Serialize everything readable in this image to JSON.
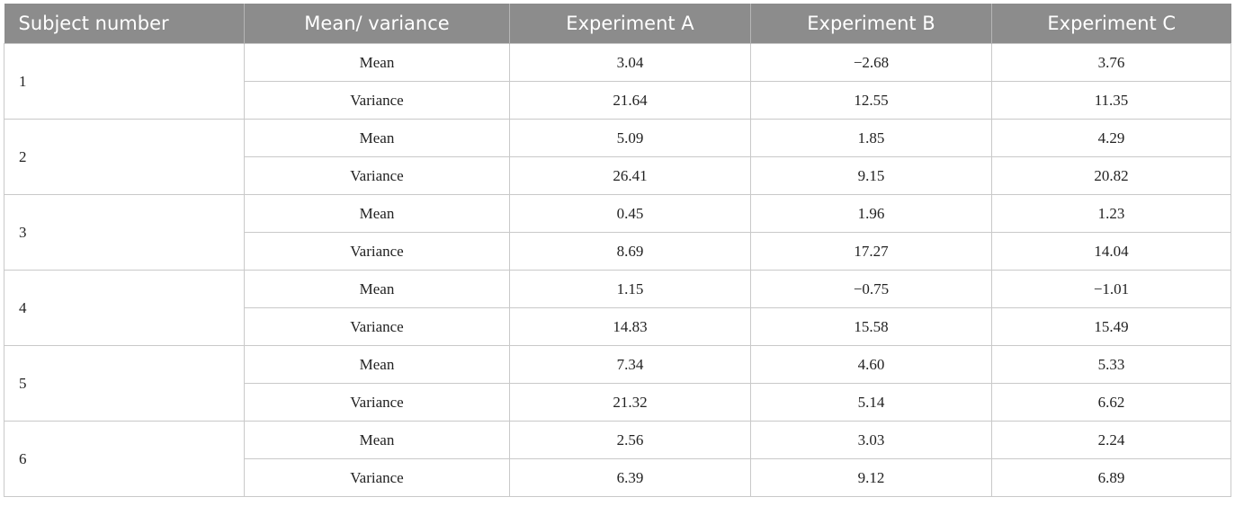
{
  "table": {
    "headers": [
      "Subject number",
      "Mean/ variance",
      "Experiment A",
      "Experiment B",
      "Experiment C"
    ],
    "subjects": [
      {
        "number": "1",
        "mean": {
          "label": "Mean",
          "values": [
            "3.04",
            "−2.68",
            "3.76"
          ]
        },
        "variance": {
          "label": "Variance",
          "values": [
            "21.64",
            "12.55",
            "11.35"
          ]
        }
      },
      {
        "number": "2",
        "mean": {
          "label": "Mean",
          "values": [
            "5.09",
            "1.85",
            "4.29"
          ]
        },
        "variance": {
          "label": "Variance",
          "values": [
            "26.41",
            "9.15",
            "20.82"
          ]
        }
      },
      {
        "number": "3",
        "mean": {
          "label": "Mean",
          "values": [
            "0.45",
            "1.96",
            "1.23"
          ]
        },
        "variance": {
          "label": "Variance",
          "values": [
            "8.69",
            "17.27",
            "14.04"
          ]
        }
      },
      {
        "number": "4",
        "mean": {
          "label": "Mean",
          "values": [
            "1.15",
            "−0.75",
            "−1.01"
          ]
        },
        "variance": {
          "label": "Variance",
          "values": [
            "14.83",
            "15.58",
            "15.49"
          ]
        }
      },
      {
        "number": "5",
        "mean": {
          "label": "Mean",
          "values": [
            "7.34",
            "4.60",
            "5.33"
          ]
        },
        "variance": {
          "label": "Variance",
          "values": [
            "21.32",
            "5.14",
            "6.62"
          ]
        }
      },
      {
        "number": "6",
        "mean": {
          "label": "Mean",
          "values": [
            "2.56",
            "3.03",
            "2.24"
          ]
        },
        "variance": {
          "label": "Variance",
          "values": [
            "6.39",
            "9.12",
            "6.89"
          ]
        }
      }
    ]
  }
}
